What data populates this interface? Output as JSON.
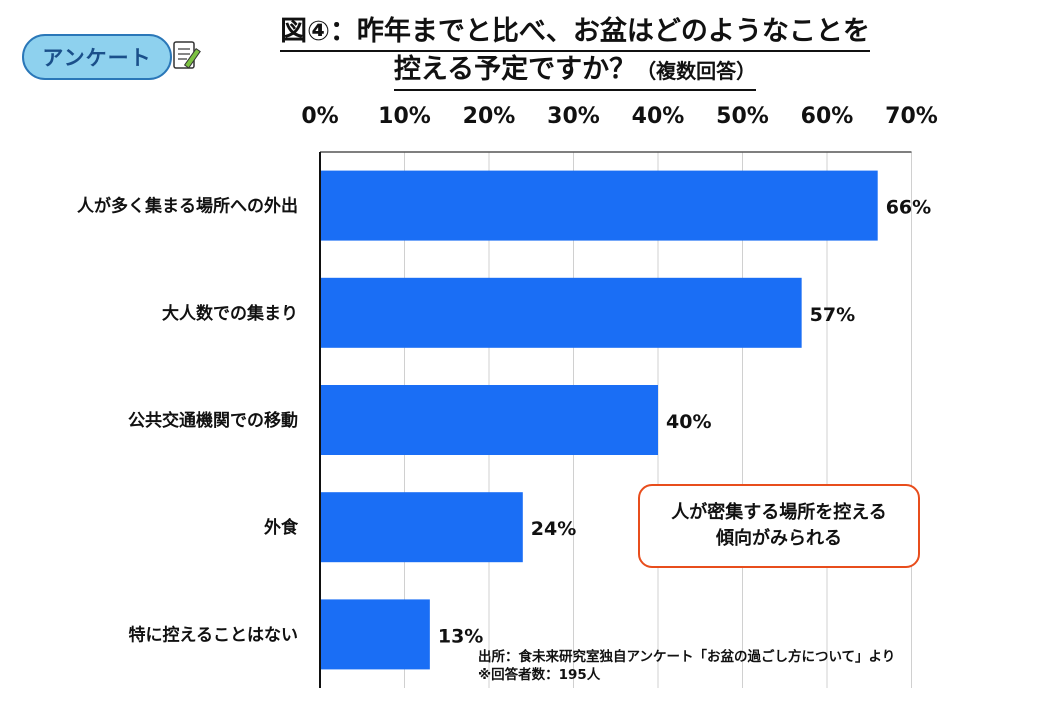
{
  "badge": {
    "label": "アンケート",
    "icon": "memo-pencil-icon"
  },
  "title": {
    "line1": "図④：昨年までと比べ、お盆はどのようなことを",
    "line2": "控える予定ですか？",
    "suffix": "（複数回答）"
  },
  "note": {
    "line1": "人が密集する場所を控える",
    "line2": "傾向がみられる"
  },
  "source": {
    "line1": "出所：食未来研究室独自アンケート「お盆の過ごし方について」より",
    "line2": "※回答者数：195人"
  },
  "colors": {
    "bar": "#1a6ef5",
    "note_border": "#e84d1c",
    "badge_fill": "#8ed1ee",
    "badge_border": "#2a77b8"
  },
  "chart_data": {
    "type": "bar",
    "orientation": "horizontal",
    "categories": [
      "人が多く集まる場所への外出",
      "大人数での集まり",
      "公共交通機関での移動",
      "外食",
      "特に控えることはない"
    ],
    "values": [
      66,
      57,
      40,
      24,
      13
    ],
    "value_labels": [
      "66%",
      "57%",
      "40%",
      "24%",
      "13%"
    ],
    "xlim": [
      0,
      70
    ],
    "xticks": [
      0,
      10,
      20,
      30,
      40,
      50,
      60,
      70
    ],
    "xtick_labels": [
      "0%",
      "10%",
      "20%",
      "30%",
      "40%",
      "50%",
      "60%",
      "70%"
    ],
    "axis_position": "top",
    "grid": true
  }
}
